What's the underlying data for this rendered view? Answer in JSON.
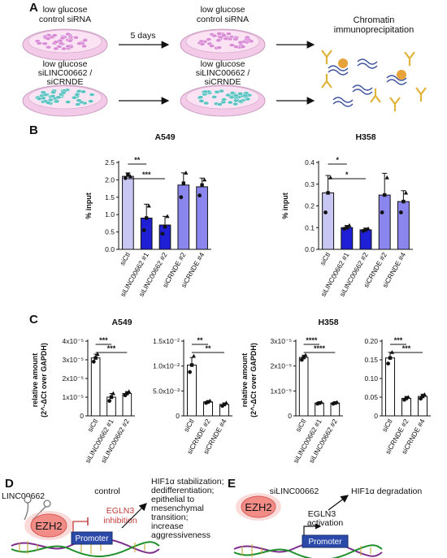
{
  "panel_a": {
    "label": "A",
    "dish1_label": [
      "low glucose",
      "control siRNA"
    ],
    "dish2_label": [
      "low glucose",
      "siLINC00662 /",
      "siCRNDE"
    ],
    "dish3_label": [
      "low glucose",
      "control siRNA"
    ],
    "dish4_label": [
      "low glucose",
      "siLINC00662 /",
      "siCRNDE"
    ],
    "arrow_label": "5 days",
    "chip_label": [
      "Chromatin",
      "immunoprecipitation"
    ],
    "colors": {
      "control_cells": "#d98bd6",
      "treated_cells": "#5cc3c3",
      "dish": "#f3cbe8",
      "protein": "#e8a23a",
      "ab": "#e0b43a",
      "dna": "#3b4f9c"
    }
  },
  "panel_b": {
    "label": "B",
    "chart_data": [
      {
        "type": "bar",
        "title": "A549",
        "ylabel": "% input",
        "ylim": [
          0,
          2.5
        ],
        "yticks": [
          "0.0",
          "0.5",
          "1.0",
          "1.5",
          "2.0",
          "2.5"
        ],
        "categories": [
          "siCtl",
          "siLINC00662 #1",
          "siLINC00662 #2",
          "siCRNDE #2",
          "siCRNDE #4"
        ],
        "values": [
          2.1,
          0.9,
          0.7,
          1.85,
          1.8
        ],
        "errors": [
          0.1,
          0.4,
          0.25,
          0.35,
          0.25
        ],
        "points": [
          [
            2.05,
            2.15,
            2.1
          ],
          [
            0.55,
            0.9,
            1.25
          ],
          [
            0.45,
            0.65,
            0.95
          ],
          [
            1.5,
            1.9,
            2.2
          ],
          [
            1.55,
            1.85,
            2.0
          ]
        ],
        "colors": [
          "#c8c6f2",
          "#1f1fd6",
          "#1f1fd6",
          "#8a86ee",
          "#8a86ee"
        ],
        "significance": [
          {
            "from": 0,
            "to": 1,
            "label": "**"
          },
          {
            "from": 0,
            "to": 2,
            "label": "***"
          }
        ]
      },
      {
        "type": "bar",
        "title": "H358",
        "ylabel": "% input",
        "ylim": [
          0,
          0.4
        ],
        "yticks": [
          "0.0",
          "0.1",
          "0.2",
          "0.3",
          "0.4"
        ],
        "categories": [
          "siCtl",
          "siLINC00662 #1",
          "siLINC00662 #2",
          "siCRNDE #2",
          "siCRNDE #4"
        ],
        "values": [
          0.26,
          0.1,
          0.09,
          0.25,
          0.22
        ],
        "errors": [
          0.08,
          0.01,
          0.008,
          0.1,
          0.05
        ],
        "points": [
          [
            0.17,
            0.26,
            0.33
          ],
          [
            0.095,
            0.1,
            0.11
          ],
          [
            0.085,
            0.09,
            0.095
          ],
          [
            0.17,
            0.25,
            0.33
          ],
          [
            0.17,
            0.22,
            0.26
          ]
        ],
        "colors": [
          "#c8c6f2",
          "#1f1fd6",
          "#1f1fd6",
          "#8a86ee",
          "#8a86ee"
        ],
        "significance": [
          {
            "from": 0,
            "to": 1,
            "label": "*"
          },
          {
            "from": 0,
            "to": 2,
            "label": "*"
          }
        ]
      }
    ]
  },
  "panel_c": {
    "label": "C",
    "title_left": "A549",
    "title_right": "H358",
    "ylabel": [
      "relative amount",
      "(2^-ΔCt over GAPDH)"
    ],
    "chart_data": [
      {
        "type": "bar",
        "yticks": [
          "0",
          "1x10⁻⁵",
          "2x10⁻⁵",
          "3x10⁻⁵",
          "4x10⁻⁵"
        ],
        "ylim": [
          0,
          4
        ],
        "categories": [
          "siCtl",
          "siLINC00662 #1",
          "siLINC00662 #2"
        ],
        "values": [
          3.1,
          1.0,
          1.2
        ],
        "errors": [
          0.2,
          0.2,
          0.1
        ],
        "points": [
          [
            2.9,
            3.1,
            3.3
          ],
          [
            0.8,
            1.0,
            1.2
          ],
          [
            1.1,
            1.2,
            1.3
          ]
        ],
        "significance": [
          {
            "from": 0,
            "to": 1,
            "label": "***"
          },
          {
            "from": 0,
            "to": 2,
            "label": "***"
          }
        ]
      },
      {
        "type": "bar",
        "yticks": [
          "0",
          "5.0x10⁻³",
          "1.0x10⁻²",
          "1.5x10⁻²"
        ],
        "ylim": [
          0,
          15
        ],
        "categories": [
          "siCtl",
          "siCRNDE #2",
          "siCRNDE #4"
        ],
        "values": [
          10.2,
          2.8,
          2.3
        ],
        "errors": [
          1.5,
          0.2,
          0.3
        ],
        "points": [
          [
            8.8,
            10.2,
            12.0
          ],
          [
            2.6,
            2.8,
            3.0
          ],
          [
            2.0,
            2.3,
            2.6
          ]
        ],
        "significance": [
          {
            "from": 0,
            "to": 1,
            "label": "**"
          },
          {
            "from": 0,
            "to": 2,
            "label": "**"
          }
        ]
      },
      {
        "type": "bar",
        "yticks": [
          "0",
          "1x10⁻⁵",
          "2x10⁻⁵",
          "3x10⁻⁵"
        ],
        "ylim": [
          0,
          3.2
        ],
        "categories": [
          "siCtl",
          "siLINC00662 #1",
          "siLINC00662 #2"
        ],
        "values": [
          2.5,
          0.55,
          0.55
        ],
        "errors": [
          0.1,
          0.03,
          0.03
        ],
        "points": [
          [
            2.4,
            2.5,
            2.6
          ],
          [
            0.52,
            0.55,
            0.58
          ],
          [
            0.52,
            0.55,
            0.58
          ]
        ],
        "significance": [
          {
            "from": 0,
            "to": 1,
            "label": "****"
          },
          {
            "from": 0,
            "to": 2,
            "label": "****"
          }
        ]
      },
      {
        "type": "bar",
        "yticks": [
          "0",
          "0.05",
          "0.10",
          "0.15",
          "0.20"
        ],
        "ylim": [
          0,
          0.2
        ],
        "categories": [
          "siCtl",
          "siCRNDE #2",
          "siCRNDE #4"
        ],
        "values": [
          0.155,
          0.047,
          0.052
        ],
        "errors": [
          0.015,
          0.005,
          0.006
        ],
        "points": [
          [
            0.14,
            0.155,
            0.17
          ],
          [
            0.043,
            0.047,
            0.05
          ],
          [
            0.046,
            0.052,
            0.057
          ]
        ],
        "significance": [
          {
            "from": 0,
            "to": 1,
            "label": "***"
          },
          {
            "from": 0,
            "to": 2,
            "label": "***"
          }
        ]
      }
    ]
  },
  "panel_d": {
    "label": "D",
    "lnc_label": "LINC00662",
    "condition": "control",
    "ezh2": "EZH2",
    "inhibition": [
      "EGLN3",
      "inhibition"
    ],
    "promoter": "Promoter",
    "outcome": [
      "HIF1α stabilization;",
      "dedifferentiation;",
      "epithelial to",
      "mesenchymal",
      "transition;",
      "increase",
      "aggressiveness"
    ]
  },
  "panel_e": {
    "label": "E",
    "condition": "siLINC00662",
    "ezh2": "EZH2",
    "activation": [
      "EGLN3",
      "activation"
    ],
    "promoter": "Promoter",
    "outcome": "HIF1α degradation"
  }
}
